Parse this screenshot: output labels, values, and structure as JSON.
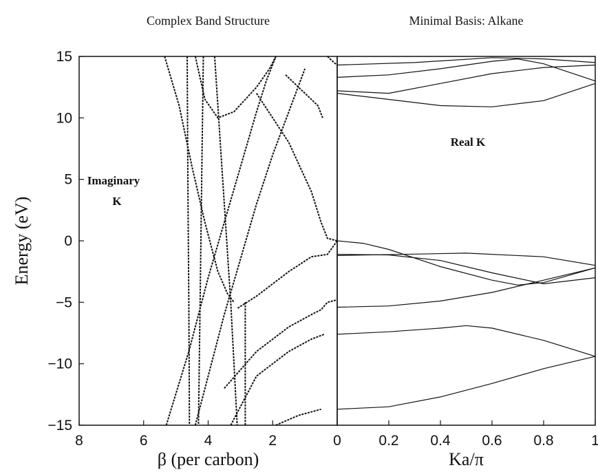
{
  "chart_data": [
    {
      "type": "line",
      "title": "Complex Band Structure",
      "ylabel": "Energy (eV)",
      "xlabel": "β (per carbon)",
      "annotations": [
        "Imaginary",
        "K"
      ],
      "color": "#111111",
      "xlim": [
        8,
        0
      ],
      "xticks": [
        8,
        6,
        4,
        2
      ],
      "ylim": [
        -15,
        15
      ],
      "yticks": [
        15,
        10,
        5,
        0,
        -5,
        -10,
        -15
      ],
      "series": [
        {
          "x": [
            5.35,
            4.9,
            4.5,
            4.1,
            3.7,
            3.4,
            3.2
          ],
          "values": [
            15,
            11,
            6,
            1.5,
            -2.5,
            -4.3,
            -5
          ]
        },
        {
          "x": [
            5.3,
            4.6,
            4.0,
            3.5,
            3.0,
            2.5,
            2.2,
            1.9
          ],
          "values": [
            -15,
            -9,
            -3,
            1.5,
            6,
            10.5,
            13,
            15
          ]
        },
        {
          "x": [
            4.4,
            3.9,
            3.5,
            3.0,
            2.5,
            2.0,
            1.5,
            1.0
          ],
          "values": [
            -15,
            -10,
            -6,
            -1.5,
            3,
            7,
            10.5,
            14
          ]
        },
        {
          "x": [
            4.65,
            4.63,
            4.6,
            4.58
          ],
          "values": [
            15,
            5,
            -5,
            -15
          ]
        },
        {
          "x": [
            4.15,
            4.2,
            4.25,
            4.3
          ],
          "values": [
            15,
            5,
            -5,
            -15
          ]
        },
        {
          "x": [
            3.8,
            3.55,
            3.3,
            3.1
          ],
          "values": [
            15,
            5,
            -5,
            -15
          ]
        },
        {
          "x": [
            2.85,
            2.85,
            2.85
          ],
          "values": [
            -5,
            -10,
            -15
          ]
        },
        {
          "x": [
            4.4,
            4.1,
            3.7,
            3.2,
            2.5,
            2.1,
            1.9
          ],
          "values": [
            15,
            11.5,
            10,
            10.5,
            12.5,
            14,
            15
          ]
        },
        {
          "x": [
            2.5,
            1.5,
            0.8,
            0.5,
            0.3,
            0
          ],
          "values": [
            12,
            8,
            4,
            1.5,
            0.2,
            0
          ]
        },
        {
          "x": [
            0,
            0.3,
            0.8,
            1.5,
            2.5,
            3.1
          ],
          "values": [
            0,
            -1.1,
            -1.3,
            -2.5,
            -4.5,
            -5.5
          ]
        },
        {
          "x": [
            1.6,
            1.0,
            0.6,
            0.45
          ],
          "values": [
            13.5,
            12,
            11,
            10
          ]
        },
        {
          "x": [
            3.3,
            2.5,
            1.5,
            0.8,
            0.4
          ],
          "values": [
            -15,
            -11,
            -9,
            -8,
            -7.6
          ]
        },
        {
          "x": [
            3.5,
            2.5,
            1.5,
            0.8,
            0.5,
            0.3,
            0
          ],
          "values": [
            -12,
            -9,
            -7,
            -6,
            -5.6,
            -5,
            -4.8
          ]
        },
        {
          "x": [
            1.9,
            1.2,
            0.5
          ],
          "values": [
            -15,
            -14.2,
            -13.7
          ]
        },
        {
          "x": [
            0.3,
            0.1,
            0
          ],
          "values": [
            15,
            14.5,
            14.3
          ]
        }
      ]
    },
    {
      "type": "line",
      "title": "Minimal Basis: Alkane",
      "xlabel": "Ka/π",
      "annotations": [
        "Real K"
      ],
      "color": "#111111",
      "xlim": [
        0,
        1
      ],
      "xticks": [
        0,
        0.2,
        0.4,
        0.6,
        0.8,
        1
      ],
      "ylim": [
        -15,
        15
      ],
      "series": [
        {
          "x": [
            0,
            0.2,
            0.4,
            0.6,
            0.8,
            1
          ],
          "values": [
            -13.7,
            -13.5,
            -12.7,
            -11.6,
            -10.4,
            -9.4
          ]
        },
        {
          "x": [
            0,
            0.2,
            0.4,
            0.5,
            0.6,
            0.8,
            1
          ],
          "values": [
            -7.6,
            -7.4,
            -7.1,
            -6.9,
            -7.1,
            -8.1,
            -9.4
          ]
        },
        {
          "x": [
            0,
            0.2,
            0.4,
            0.6,
            0.8,
            1
          ],
          "values": [
            -5.4,
            -5.3,
            -4.9,
            -4.2,
            -3.2,
            -2.2
          ]
        },
        {
          "x": [
            0,
            0.2,
            0.4,
            0.6,
            0.8,
            1
          ],
          "values": [
            -1.1,
            -1.15,
            -1.6,
            -2.6,
            -3.5,
            -3.0
          ]
        },
        {
          "x": [
            0,
            0.1,
            0.2,
            0.4,
            0.6,
            0.7,
            0.8,
            1
          ],
          "values": [
            0,
            -0.2,
            -0.7,
            -2.1,
            -3.2,
            -3.6,
            -3.4,
            -2.2
          ]
        },
        {
          "x": [
            0,
            0.5,
            0.8,
            1
          ],
          "values": [
            -1.2,
            -1.0,
            -1.3,
            -2.0
          ]
        },
        {
          "x": [
            0,
            0.2,
            0.4,
            0.6,
            0.8,
            1
          ],
          "values": [
            12,
            11.5,
            11.0,
            10.9,
            11.4,
            12.8
          ]
        },
        {
          "x": [
            0,
            0.2,
            0.4,
            0.6,
            0.8,
            1
          ],
          "values": [
            12.2,
            12.0,
            12.8,
            13.6,
            14.1,
            14.3
          ]
        },
        {
          "x": [
            0,
            0.2,
            0.4,
            0.6,
            0.7,
            0.8,
            1
          ],
          "values": [
            13.3,
            13.5,
            14.0,
            14.6,
            14.8,
            14.4,
            13.0
          ]
        },
        {
          "x": [
            0,
            0.3,
            0.6,
            0.8,
            1
          ],
          "values": [
            14.3,
            14.5,
            14.9,
            14.8,
            14.5
          ]
        }
      ]
    }
  ]
}
